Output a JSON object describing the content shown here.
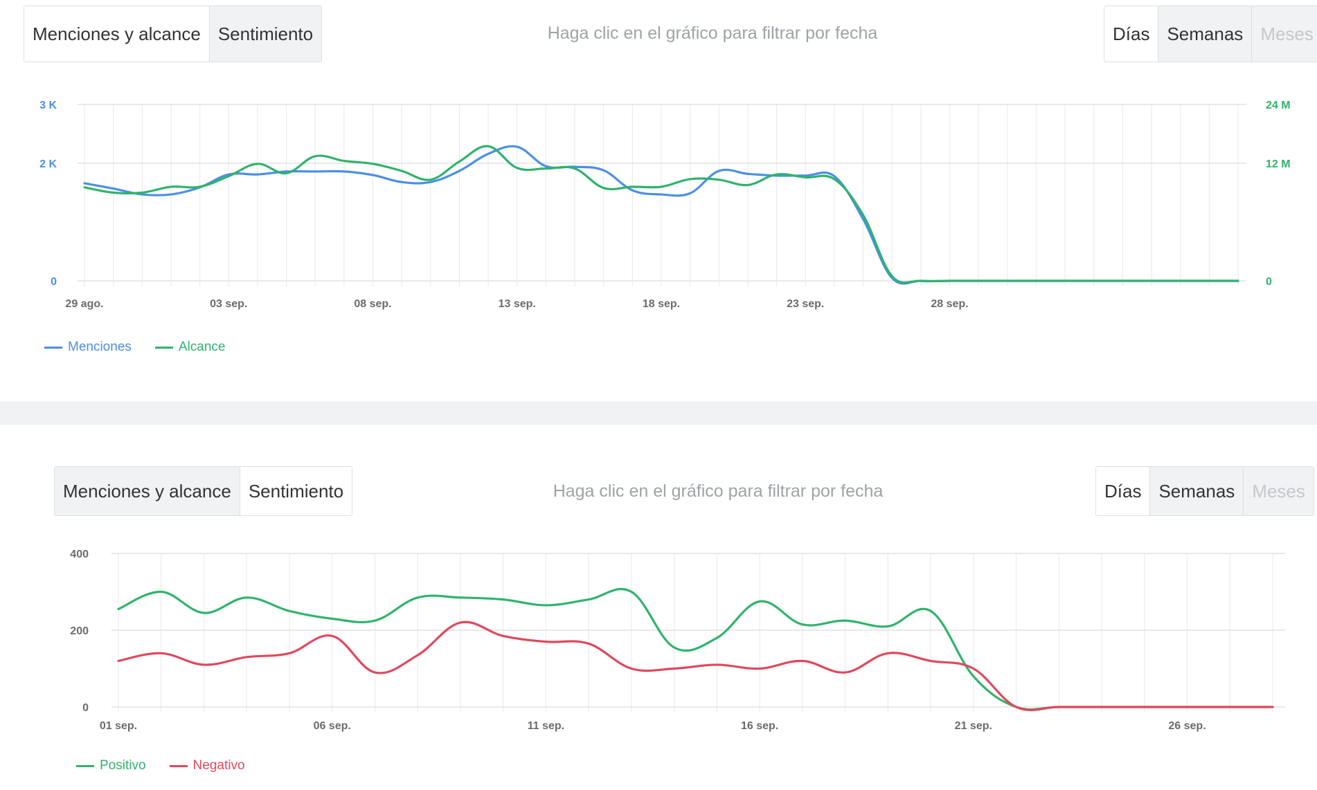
{
  "panels": [
    {
      "tabs": [
        "Menciones y alcance",
        "Sentimiento"
      ],
      "hint": "Haga clic en el gráfico para filtrar por fecha",
      "period": [
        "Días",
        "Semanas",
        "Meses"
      ],
      "legend": [
        {
          "label": "Menciones",
          "color": "#4a8fe7"
        },
        {
          "label": "Alcance",
          "color": "#2fb36b"
        }
      ]
    },
    {
      "tabs": [
        "Menciones y alcance",
        "Sentimiento"
      ],
      "hint": "Haga clic en el gráfico para filtrar por fecha",
      "period": [
        "Días",
        "Semanas",
        "Meses"
      ],
      "legend": [
        {
          "label": "Positivo",
          "color": "#2fb36b"
        },
        {
          "label": "Negativo",
          "color": "#e0485c"
        }
      ]
    }
  ],
  "chart_data": [
    {
      "type": "line",
      "x_ticks": [
        "29 ago.",
        "03 sep.",
        "08 sep.",
        "13 sep.",
        "18 sep.",
        "23 sep.",
        "28 sep."
      ],
      "y_left": {
        "ticks": [
          "0",
          "2 K",
          "3 K"
        ],
        "range": [
          0,
          3000
        ],
        "color": "#4a8fe7"
      },
      "y_right": {
        "ticks": [
          "0",
          "12 M",
          "24 M"
        ],
        "range": [
          0,
          24000000
        ],
        "color": "#2fb36b"
      },
      "grid": true,
      "legend_position": "bottom-left",
      "series": [
        {
          "name": "Menciones",
          "axis": "left",
          "color": "#4a8fe7",
          "values": [
            1660,
            1570,
            1470,
            1470,
            1590,
            1810,
            1810,
            1860,
            1860,
            1860,
            1800,
            1680,
            1680,
            1870,
            2160,
            2280,
            1950,
            1940,
            1880,
            1540,
            1470,
            1490,
            1870,
            1820,
            1790,
            1790,
            1780,
            1050,
            50,
            0,
            0,
            0,
            0,
            0,
            0,
            0,
            0,
            0,
            0,
            0,
            0
          ]
        },
        {
          "name": "Alcance",
          "axis": "left",
          "color": "#2fb36b",
          "values": [
            1590,
            1500,
            1500,
            1600,
            1600,
            1780,
            1990,
            1830,
            2120,
            2040,
            1990,
            1870,
            1720,
            2030,
            2290,
            1920,
            1910,
            1910,
            1580,
            1600,
            1600,
            1730,
            1720,
            1630,
            1810,
            1760,
            1730,
            1120,
            80,
            0,
            0,
            0,
            0,
            0,
            0,
            0,
            0,
            0,
            0,
            0,
            0
          ]
        }
      ]
    },
    {
      "type": "line",
      "x_ticks": [
        "01 sep.",
        "06 sep.",
        "11 sep.",
        "16 sep.",
        "21 sep.",
        "26 sep."
      ],
      "y_left": {
        "ticks": [
          "0",
          "200",
          "400"
        ],
        "range": [
          0,
          400
        ]
      },
      "grid": true,
      "legend_position": "bottom-left",
      "series": [
        {
          "name": "Positivo",
          "color": "#2fb36b",
          "values": [
            255,
            300,
            245,
            285,
            250,
            230,
            225,
            285,
            285,
            280,
            265,
            280,
            300,
            155,
            180,
            275,
            215,
            225,
            210,
            250,
            80,
            0,
            0,
            0,
            0,
            0,
            0,
            0
          ]
        },
        {
          "name": "Negativo",
          "color": "#e0485c",
          "values": [
            120,
            140,
            110,
            130,
            140,
            185,
            90,
            135,
            220,
            185,
            170,
            165,
            100,
            100,
            110,
            100,
            120,
            90,
            140,
            120,
            100,
            0,
            0,
            0,
            0,
            0,
            0,
            0
          ]
        }
      ]
    }
  ]
}
